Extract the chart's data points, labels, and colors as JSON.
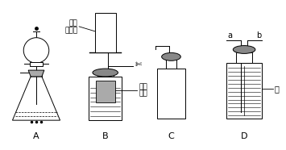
{
  "bg_color": "#ffffff",
  "label_A": "A",
  "label_B": "B",
  "label_C": "C",
  "label_D": "D",
  "text_qudi": "去底",
  "text_suliao_ping": "塑料瓶",
  "text_suliao_shawang_1": "塑料",
  "text_suliao_shawang_2": "纱网",
  "text_shui": "水",
  "text_a": "a",
  "text_b": "b",
  "line_color": "#000000",
  "gray_dark": "#888888",
  "gray_light": "#cccccc"
}
